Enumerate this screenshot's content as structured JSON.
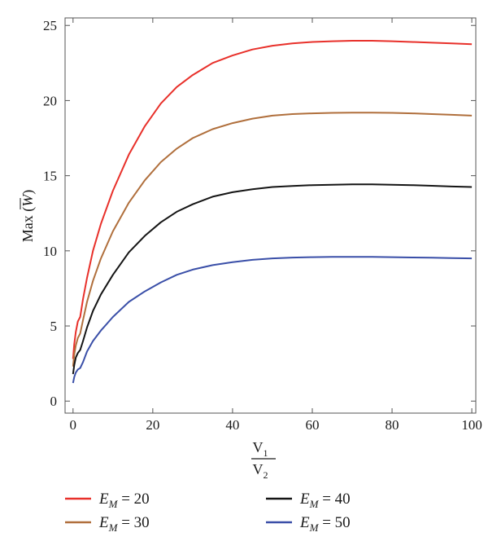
{
  "chart_data": {
    "type": "line",
    "title": "",
    "xlabel": {
      "numerator": "V",
      "numerator_sub": "1",
      "denominator": "V",
      "denominator_sub": "2"
    },
    "ylabel": {
      "prefix": "Max (",
      "symbol": "W",
      "suffix": ")"
    },
    "xlim": [
      -2,
      101
    ],
    "ylim": [
      -0.8,
      25.5
    ],
    "xticks": [
      0,
      20,
      40,
      60,
      80,
      100
    ],
    "yticks": [
      0,
      5,
      10,
      15,
      20,
      25
    ],
    "grid": false,
    "legend_position": "bottom",
    "series": [
      {
        "name": "E_M = 20",
        "legend_symbol": "E",
        "legend_sub": "M",
        "legend_value": "= 20",
        "color": "#e8302a",
        "x": [
          0,
          0.3,
          0.7,
          1.2,
          1.8,
          2.5,
          3.5,
          5,
          7,
          10,
          14,
          18,
          22,
          26,
          30,
          35,
          40,
          45,
          50,
          55,
          60,
          65,
          70,
          75,
          80,
          85,
          90,
          95,
          100
        ],
        "y": [
          2.8,
          3.8,
          4.6,
          5.3,
          5.6,
          6.8,
          8.2,
          10.0,
          11.8,
          14.0,
          16.4,
          18.3,
          19.8,
          20.9,
          21.7,
          22.5,
          23.0,
          23.4,
          23.65,
          23.8,
          23.9,
          23.95,
          23.98,
          23.98,
          23.95,
          23.9,
          23.85,
          23.8,
          23.75
        ]
      },
      {
        "name": "E_M = 30",
        "legend_symbol": "E",
        "legend_sub": "M",
        "legend_value": "= 30",
        "color": "#b06f3c",
        "x": [
          0,
          0.3,
          0.7,
          1.2,
          1.8,
          2.5,
          3.5,
          5,
          7,
          10,
          14,
          18,
          22,
          26,
          30,
          35,
          40,
          45,
          50,
          55,
          60,
          65,
          70,
          75,
          80,
          85,
          90,
          95,
          100
        ],
        "y": [
          2.3,
          3.1,
          3.7,
          4.2,
          4.5,
          5.4,
          6.6,
          8.0,
          9.5,
          11.3,
          13.2,
          14.7,
          15.9,
          16.8,
          17.5,
          18.1,
          18.5,
          18.8,
          19.0,
          19.1,
          19.15,
          19.18,
          19.2,
          19.2,
          19.18,
          19.15,
          19.1,
          19.05,
          19.0
        ]
      },
      {
        "name": "E_M = 40",
        "legend_symbol": "E",
        "legend_sub": "M",
        "legend_value": "= 40",
        "color": "#141414",
        "x": [
          0,
          0.3,
          0.7,
          1.2,
          1.8,
          2.5,
          3.5,
          5,
          7,
          10,
          14,
          18,
          22,
          26,
          30,
          35,
          40,
          45,
          50,
          55,
          60,
          65,
          70,
          75,
          80,
          85,
          90,
          95,
          100
        ],
        "y": [
          1.8,
          2.4,
          2.9,
          3.2,
          3.4,
          4.0,
          4.9,
          6.0,
          7.1,
          8.4,
          9.9,
          11.0,
          11.9,
          12.6,
          13.1,
          13.6,
          13.9,
          14.1,
          14.25,
          14.32,
          14.37,
          14.4,
          14.42,
          14.42,
          14.4,
          14.37,
          14.33,
          14.28,
          14.25
        ]
      },
      {
        "name": "E_M = 50",
        "legend_symbol": "E",
        "legend_sub": "M",
        "legend_value": "= 50",
        "color": "#3a4fa8",
        "x": [
          0,
          0.3,
          0.7,
          1.2,
          1.8,
          2.5,
          3.5,
          5,
          7,
          10,
          14,
          18,
          22,
          26,
          30,
          35,
          40,
          45,
          50,
          55,
          60,
          65,
          70,
          75,
          80,
          85,
          90,
          95,
          100
        ],
        "y": [
          1.2,
          1.6,
          1.9,
          2.1,
          2.2,
          2.6,
          3.3,
          4.0,
          4.7,
          5.6,
          6.6,
          7.3,
          7.9,
          8.4,
          8.75,
          9.05,
          9.25,
          9.4,
          9.5,
          9.55,
          9.58,
          9.6,
          9.6,
          9.6,
          9.58,
          9.56,
          9.54,
          9.52,
          9.5
        ]
      }
    ]
  }
}
